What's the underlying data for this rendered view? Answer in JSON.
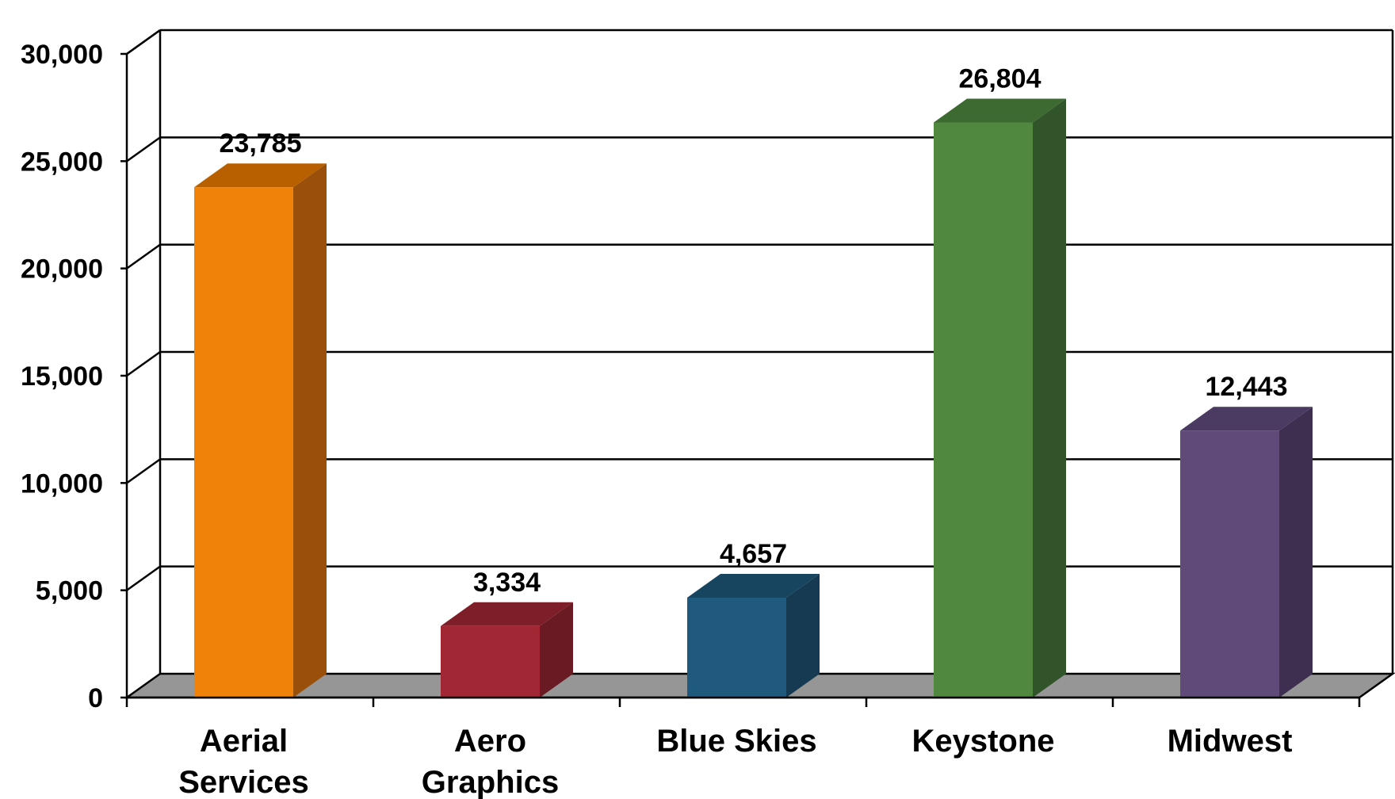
{
  "chart_data": {
    "type": "bar",
    "categories": [
      [
        "Aerial",
        "Services"
      ],
      [
        "Aero",
        "Graphics"
      ],
      [
        "Blue Skies"
      ],
      [
        "Keystone"
      ],
      [
        "Midwest"
      ]
    ],
    "values": [
      23785,
      3334,
      4657,
      26804,
      12443
    ],
    "value_labels": [
      "23,785",
      "3,334",
      "4,657",
      "26,804",
      "12,443"
    ],
    "ylim": [
      0,
      30000
    ],
    "yticks": [
      0,
      5000,
      10000,
      15000,
      20000,
      25000,
      30000
    ],
    "ytick_labels": [
      "0",
      "5,000",
      "10,000",
      "15,000",
      "20,000",
      "25,000",
      "30,000"
    ],
    "grid": true,
    "style": "3d-column",
    "colors": {
      "bar_front": [
        "#F0820A",
        "#A22734",
        "#1F5A7E",
        "#508840",
        "#604A7A"
      ],
      "bar_side": [
        "#9A500A",
        "#6A1A22",
        "#153A52",
        "#32542A",
        "#3E2F50"
      ],
      "bar_top": [
        "#B86000",
        "#7E1E28",
        "#17455F",
        "#3C6A30",
        "#4B3A61"
      ],
      "floor": "#969696",
      "gridline": "#000000"
    }
  }
}
